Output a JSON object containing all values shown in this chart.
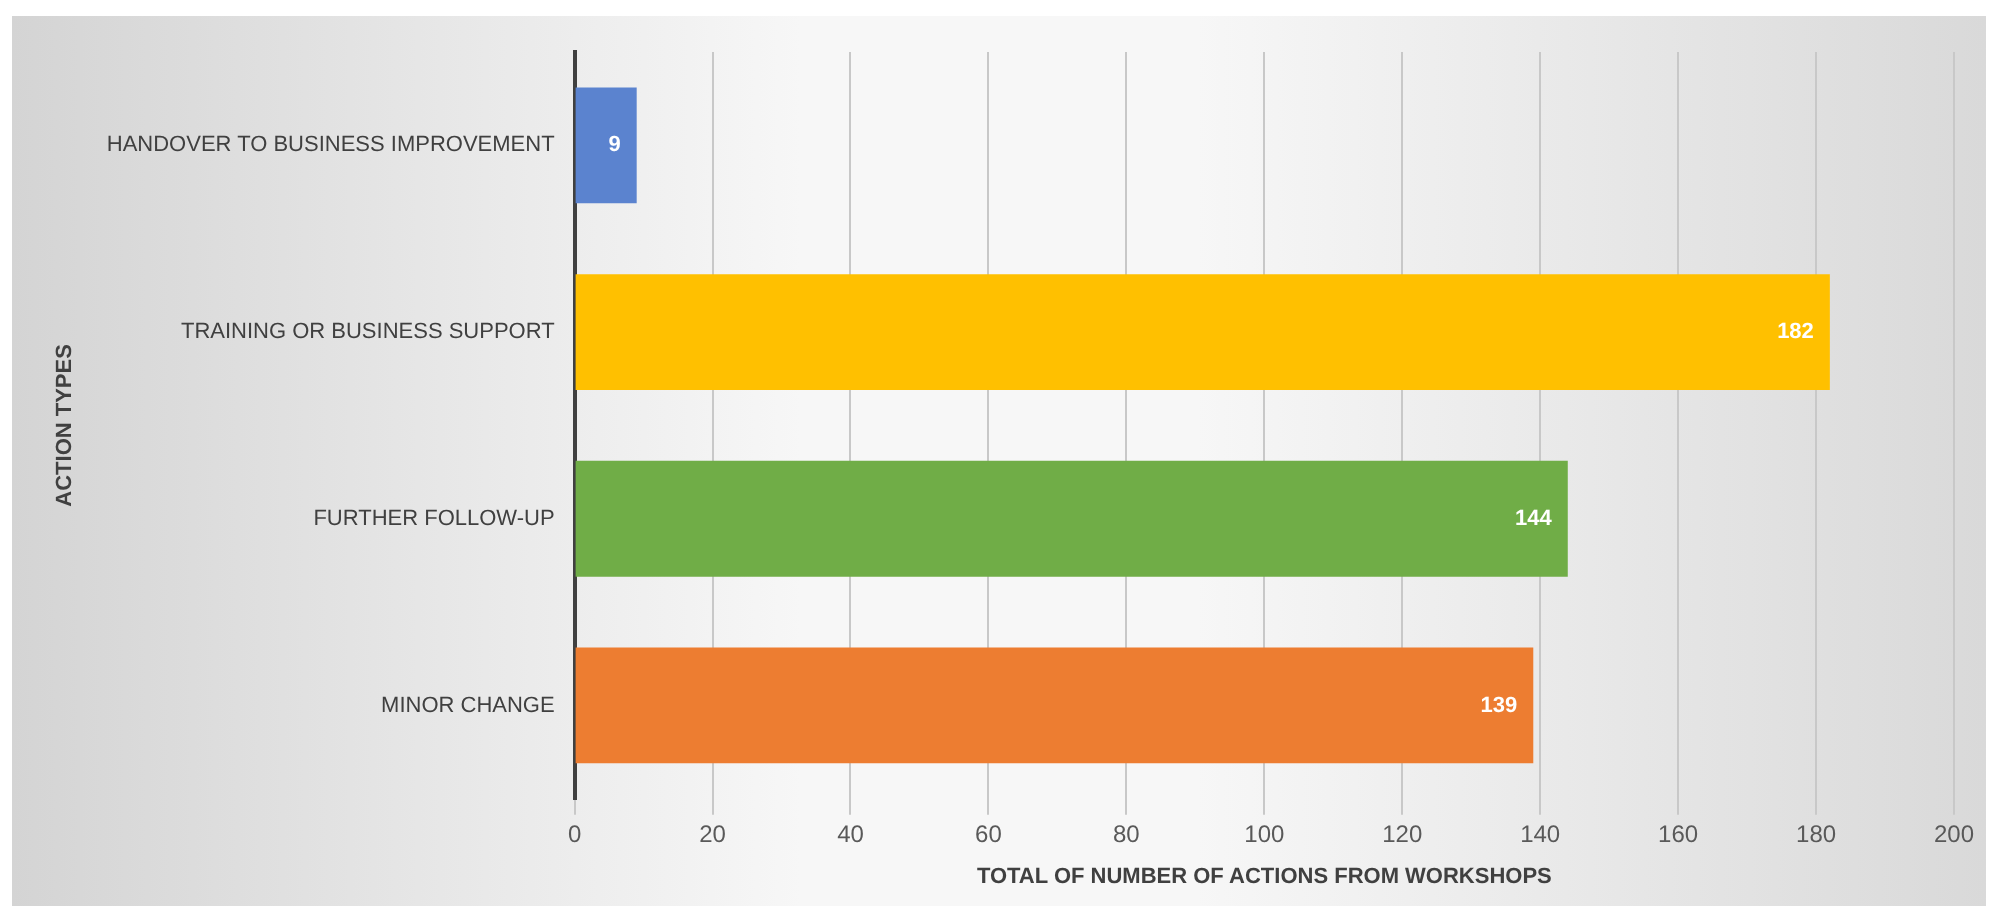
{
  "chart_data": {
    "type": "bar",
    "orientation": "horizontal",
    "xlabel": "TOTAL OF NUMBER OF ACTIONS FROM WORKSHOPS",
    "ylabel": "ACTION TYPES",
    "categories": [
      "HANDOVER TO BUSINESS IMPROVEMENT",
      "TRAINING OR BUSINESS SUPPORT",
      "FURTHER FOLLOW-UP",
      "MINOR CHANGE"
    ],
    "values": [
      9,
      182,
      144,
      139
    ],
    "colors": [
      "#5b83cf",
      "#ffc000",
      "#70ad47",
      "#ed7d31"
    ],
    "xlim": [
      0,
      200
    ],
    "xticks": [
      0,
      20,
      40,
      60,
      80,
      100,
      120,
      140,
      160,
      180,
      200
    ],
    "grid": "x",
    "data_labels": true,
    "legend": false
  }
}
